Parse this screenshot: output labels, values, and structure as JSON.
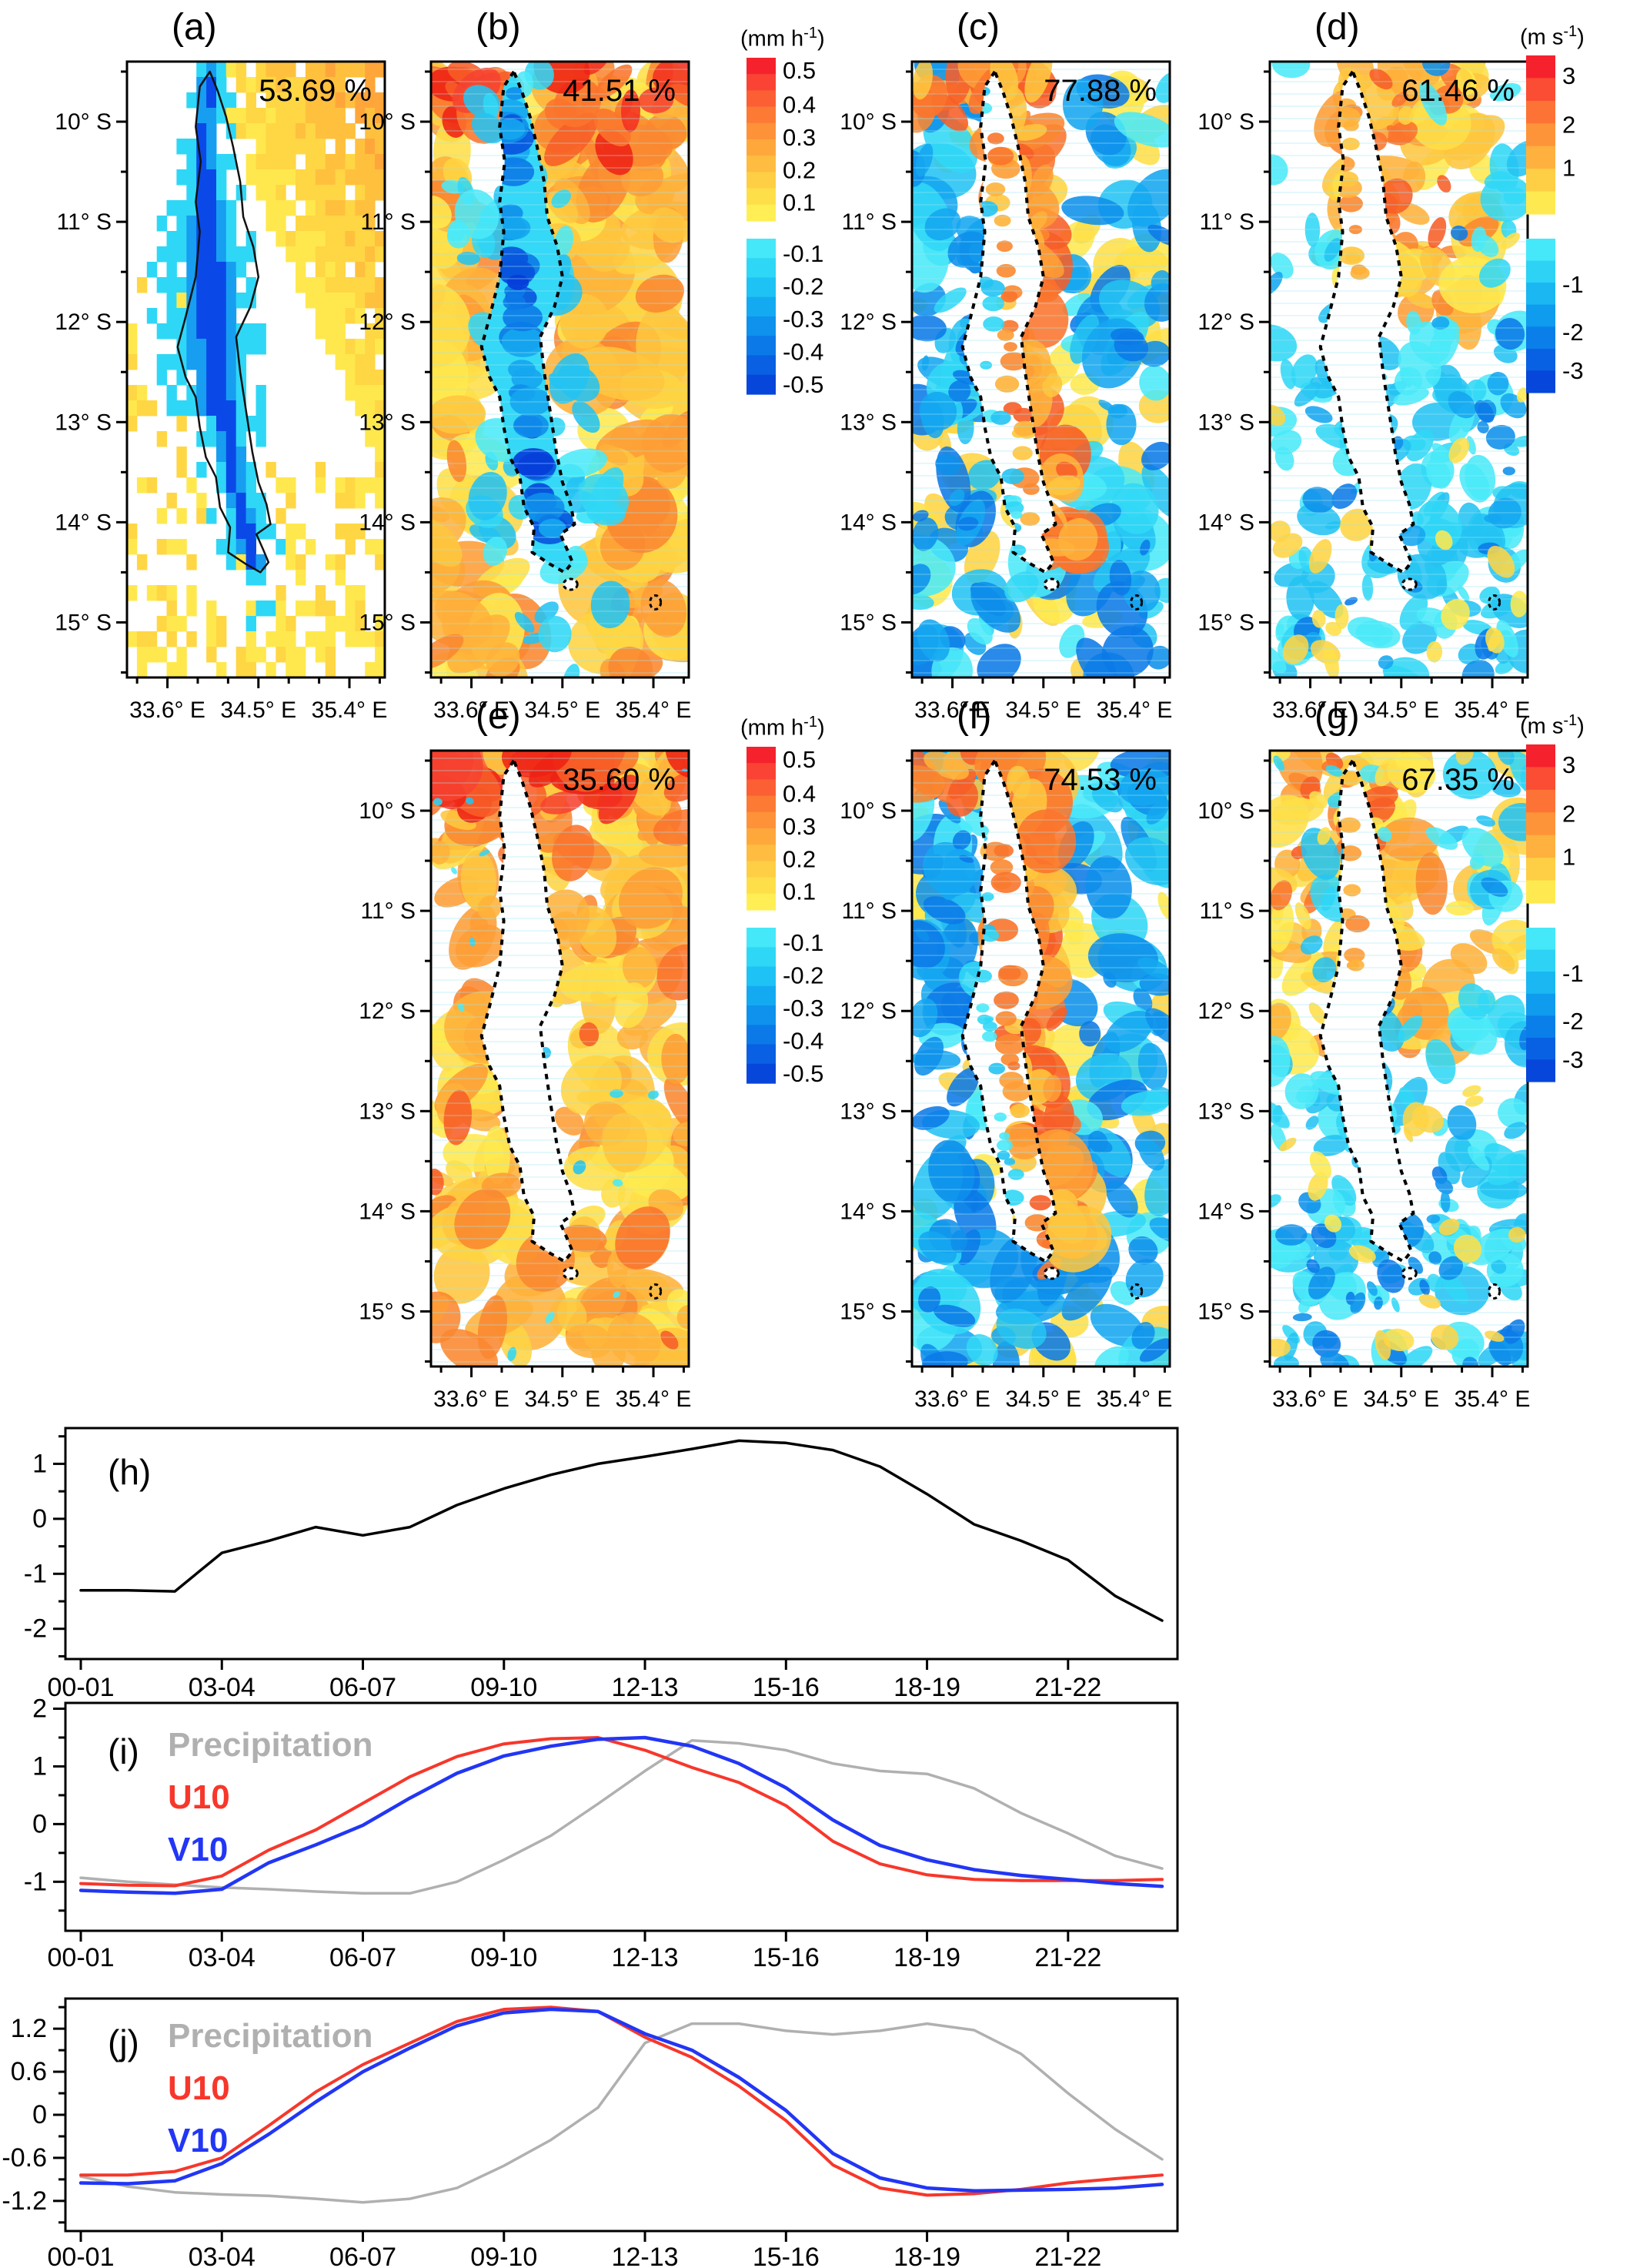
{
  "figure": {
    "map_panels": [
      {
        "id": "a",
        "label": "(a)",
        "percent": "53.69 %",
        "style": "pixel",
        "colorbar": null
      },
      {
        "id": "b",
        "label": "(b)",
        "percent": "41.51 %",
        "style": "smooth",
        "colorbar": "mmh"
      },
      {
        "id": "c",
        "label": "(c)",
        "percent": "77.88 %",
        "style": "smooth",
        "colorbar": null
      },
      {
        "id": "d",
        "label": "(d)",
        "percent": "61.46 %",
        "style": "smooth",
        "colorbar": "ms"
      },
      {
        "id": "e",
        "label": "(e)",
        "percent": "35.60 %",
        "style": "smooth",
        "colorbar": "mmh"
      },
      {
        "id": "f",
        "label": "(f)",
        "percent": "74.53 %",
        "style": "smooth",
        "colorbar": null
      },
      {
        "id": "g",
        "label": "(g)",
        "percent": "67.35 %",
        "style": "smooth",
        "colorbar": "ms"
      }
    ],
    "map_axes": {
      "x_tick_labels": [
        "33.6° E",
        "34.5° E",
        "35.4° E"
      ],
      "x_tick_lons": [
        33.6,
        34.5,
        35.4
      ],
      "x_minor_step_deg": 0.3,
      "y_tick_labels": [
        "10° S",
        "11° S",
        "12° S",
        "13° S",
        "14° S",
        "15° S"
      ],
      "y_tick_lats": [
        10,
        11,
        12,
        13,
        14,
        15
      ],
      "y_minor_step_deg": 0.5
    },
    "colorbars": {
      "mmh": {
        "unit_base": "(mm h",
        "unit_sup": "-1",
        "unit_close": ")",
        "warm_labels": [
          "0.5",
          "0.4",
          "0.3",
          "0.2",
          "0.1"
        ],
        "cool_labels": [
          "-0.1",
          "-0.2",
          "-0.3",
          "-0.4",
          "-0.5"
        ]
      },
      "ms": {
        "unit_base": "(m s",
        "unit_sup": "-1",
        "unit_close": ")",
        "warm_labels": [
          "3",
          "2",
          "1"
        ],
        "cool_labels": [
          "-1",
          "-2",
          "-3"
        ]
      }
    },
    "palette": {
      "warm_min": "#ffe84e",
      "warm_mid": "#ffa63a",
      "warm_max": "#f22314",
      "cool_min": "#4ae9f8",
      "cool_mid": "#15a6f0",
      "cool_max": "#063cd9",
      "lake_fill": "#35d8f6",
      "outline": "#000000"
    }
  },
  "chart_data": [
    {
      "id": "h",
      "type": "line",
      "panel_label": "(h)",
      "x_tick_labels": [
        "00-01",
        "03-04",
        "06-07",
        "09-10",
        "12-13",
        "15-16",
        "18-19",
        "21-22"
      ],
      "x_tick_hours": [
        0,
        3,
        6,
        9,
        12,
        15,
        18,
        21
      ],
      "ylim": [
        -2.55,
        1.65
      ],
      "y_major_ticks": [
        1,
        0,
        -1,
        -2
      ],
      "y_minor_step": 0.5,
      "legend": null,
      "series": [
        {
          "name": "",
          "color": "#000000",
          "width": 3.5,
          "values": [
            -1.3,
            -1.3,
            -1.32,
            -0.62,
            -0.4,
            -0.15,
            -0.3,
            -0.15,
            0.25,
            0.55,
            0.8,
            1.0,
            1.13,
            1.27,
            1.42,
            1.38,
            1.25,
            0.95,
            0.45,
            -0.1,
            -0.4,
            -0.75,
            -1.4,
            -1.85
          ]
        }
      ]
    },
    {
      "id": "i",
      "type": "line",
      "panel_label": "(i)",
      "x_tick_labels": [
        "00-01",
        "03-04",
        "06-07",
        "09-10",
        "12-13",
        "15-16",
        "18-19",
        "21-22"
      ],
      "x_tick_hours": [
        0,
        3,
        6,
        9,
        12,
        15,
        18,
        21
      ],
      "ylim": [
        -1.85,
        2.1
      ],
      "y_major_ticks": [
        2,
        1,
        0,
        -1
      ],
      "y_minor_step": 0.5,
      "legend": [
        "Precipitation",
        "U10",
        "V10"
      ],
      "series": [
        {
          "name": "Precipitation",
          "color": "#b0b0b0",
          "width": 3.5,
          "values": [
            -0.93,
            -1.0,
            -1.05,
            -1.1,
            -1.13,
            -1.17,
            -1.2,
            -1.2,
            -1.0,
            -0.62,
            -0.2,
            0.35,
            0.92,
            1.45,
            1.4,
            1.28,
            1.05,
            0.92,
            0.87,
            0.62,
            0.19,
            -0.16,
            -0.55,
            -0.77
          ]
        },
        {
          "name": "U10",
          "color": "#f7372b",
          "width": 4,
          "values": [
            -1.03,
            -1.06,
            -1.07,
            -0.9,
            -0.45,
            -0.1,
            0.36,
            0.82,
            1.17,
            1.39,
            1.48,
            1.5,
            1.28,
            0.98,
            0.72,
            0.32,
            -0.3,
            -0.69,
            -0.88,
            -0.96,
            -0.98,
            -0.98,
            -0.98,
            -0.96
          ]
        },
        {
          "name": "V10",
          "color": "#2236f5",
          "width": 4.5,
          "values": [
            -1.15,
            -1.18,
            -1.2,
            -1.13,
            -0.67,
            -0.36,
            -0.02,
            0.45,
            0.88,
            1.18,
            1.35,
            1.47,
            1.5,
            1.35,
            1.05,
            0.63,
            0.07,
            -0.37,
            -0.62,
            -0.79,
            -0.89,
            -0.96,
            -1.03,
            -1.08
          ]
        }
      ]
    },
    {
      "id": "j",
      "type": "line",
      "panel_label": "(j)",
      "x_tick_labels": [
        "00-01",
        "03-04",
        "06-07",
        "09-10",
        "12-13",
        "15-16",
        "18-19",
        "21-22"
      ],
      "x_tick_hours": [
        0,
        3,
        6,
        9,
        12,
        15,
        18,
        21
      ],
      "ylim": [
        -1.62,
        1.62
      ],
      "y_major_ticks": [
        1.2,
        0.6,
        0,
        -0.6,
        -1.2
      ],
      "y_minor_step": 0.3,
      "legend": [
        "Precipitation",
        "U10",
        "V10"
      ],
      "series": [
        {
          "name": "Precipitation",
          "color": "#b0b0b0",
          "width": 3.5,
          "values": [
            -0.86,
            -1.0,
            -1.08,
            -1.11,
            -1.13,
            -1.17,
            -1.22,
            -1.17,
            -1.02,
            -0.71,
            -0.35,
            0.1,
            1.0,
            1.27,
            1.27,
            1.17,
            1.12,
            1.17,
            1.27,
            1.18,
            0.85,
            0.3,
            -0.2,
            -0.62
          ]
        },
        {
          "name": "U10",
          "color": "#f7372b",
          "width": 4,
          "values": [
            -0.84,
            -0.84,
            -0.79,
            -0.6,
            -0.15,
            0.32,
            0.7,
            1.0,
            1.3,
            1.47,
            1.5,
            1.44,
            1.08,
            0.8,
            0.4,
            -0.08,
            -0.7,
            -1.02,
            -1.12,
            -1.1,
            -1.04,
            -0.95,
            -0.89,
            -0.84
          ]
        },
        {
          "name": "V10",
          "color": "#2236f5",
          "width": 4.5,
          "values": [
            -0.95,
            -0.96,
            -0.92,
            -0.68,
            -0.27,
            0.18,
            0.6,
            0.93,
            1.24,
            1.42,
            1.47,
            1.44,
            1.13,
            0.9,
            0.52,
            0.06,
            -0.54,
            -0.88,
            -1.02,
            -1.06,
            -1.05,
            -1.04,
            -1.02,
            -0.97
          ]
        }
      ]
    }
  ]
}
